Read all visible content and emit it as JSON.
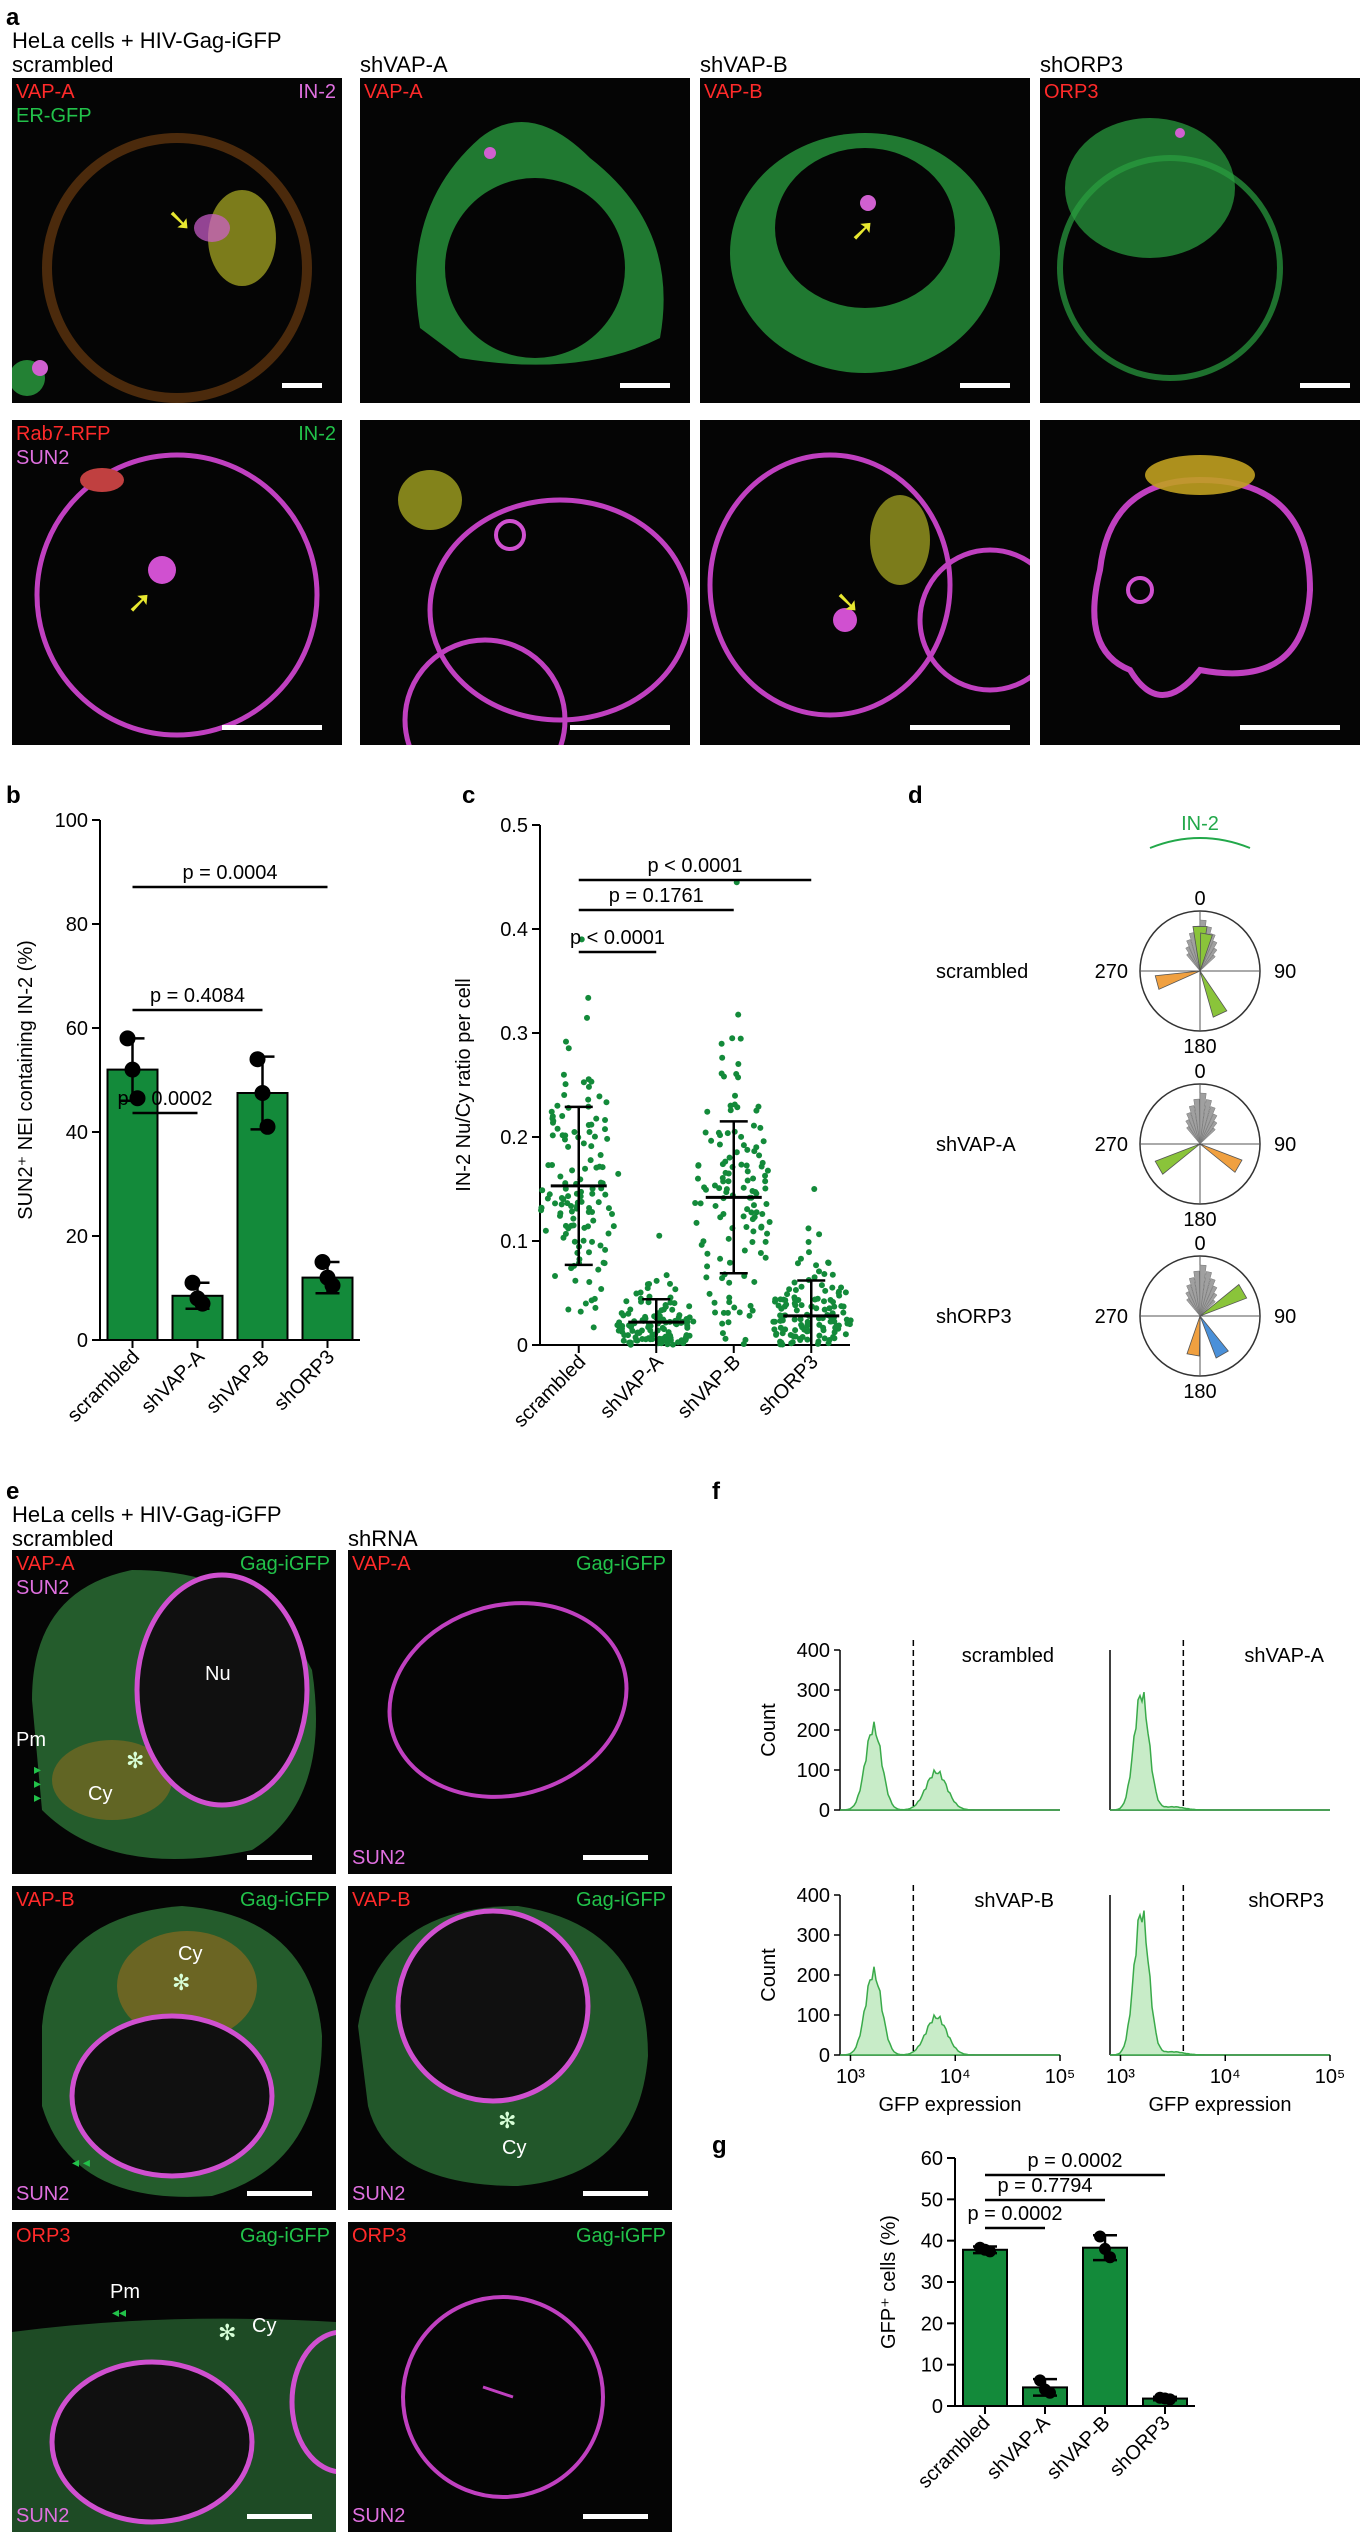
{
  "panel_labels": [
    "a",
    "b",
    "c",
    "d",
    "e",
    "f",
    "g"
  ],
  "panel_a": {
    "header_line1": "HeLa cells + HIV-Gag-iGFP",
    "columns": [
      "scrambled",
      "shVAP-A",
      "shVAP-B",
      "shORP3"
    ],
    "row1_labels": {
      "c1_red": "VAP-A",
      "c1_green": "ER-GFP",
      "c1_magenta": "IN-2",
      "c2_red": "VAP-A",
      "c3_red": "VAP-B",
      "c4_red": "ORP3"
    },
    "row2_labels": {
      "red": "Rab7-RFP",
      "green": "IN-2",
      "magenta": "SUN2"
    }
  },
  "panel_e": {
    "header_line1": "HeLa cells + HIV-Gag-iGFP",
    "col1": "scrambled",
    "col2": "shRNA",
    "rows": [
      {
        "red": "VAP-A",
        "green": "Gag-iGFP",
        "magenta": "SUN2"
      },
      {
        "red": "VAP-B",
        "green": "Gag-iGFP",
        "magenta": "SUN2"
      },
      {
        "red": "ORP3",
        "green": "Gag-iGFP",
        "magenta": "SUN2"
      }
    ],
    "annot": {
      "nu": "Nu",
      "pm": "Pm",
      "cy": "Cy"
    }
  },
  "panel_d": {
    "title": "IN-2",
    "conditions": [
      "scrambled",
      "shVAP-A",
      "shORP3"
    ],
    "angles": {
      "top": "0",
      "right": "90",
      "bottom": "180",
      "left": "270"
    }
  },
  "chart_data": [
    {
      "id": "b",
      "type": "bar",
      "categories": [
        "scrambled",
        "shVAP-A",
        "shVAP-B",
        "shORP3"
      ],
      "values": [
        52,
        8.5,
        47.5,
        12
      ],
      "errors": [
        6,
        2.5,
        7,
        3
      ],
      "points": [
        [
          58,
          52,
          46.5
        ],
        [
          11,
          8,
          7
        ],
        [
          54,
          47.5,
          41
        ],
        [
          15,
          12,
          10.5
        ]
      ],
      "ylabel": "SUN2⁺ NEI containing IN-2 (%)",
      "ylim": [
        0,
        100
      ],
      "yticks": [
        0,
        20,
        40,
        60,
        80,
        100
      ],
      "bar_color": "#138a3a",
      "comparisons": [
        {
          "from": 0,
          "to": 1,
          "label": "p = 0.0002"
        },
        {
          "from": 0,
          "to": 2,
          "label": "p = 0.4084"
        },
        {
          "from": 0,
          "to": 3,
          "label": "p = 0.0004"
        }
      ]
    },
    {
      "id": "c",
      "type": "scatter",
      "categories": [
        "scrambled",
        "shVAP-A",
        "shVAP-B",
        "shORP3"
      ],
      "means": [
        0.153,
        0.022,
        0.142,
        0.028
      ],
      "sd": [
        0.076,
        0.022,
        0.073,
        0.034
      ],
      "ymax_points": [
        0.39,
        0.105,
        0.445,
        0.15
      ],
      "ylabel": "IN-2 Nu/Cy ratio per cell",
      "ylim": [
        0,
        0.5
      ],
      "yticks": [
        0,
        0.1,
        0.2,
        0.3,
        0.4,
        0.5
      ],
      "point_color": "#138a3a",
      "comparisons": [
        {
          "from": 0,
          "to": 1,
          "label": "p < 0.0001"
        },
        {
          "from": 0,
          "to": 2,
          "label": "p = 0.1761"
        },
        {
          "from": 0,
          "to": 3,
          "label": "p < 0.0001"
        }
      ]
    },
    {
      "id": "f",
      "type": "area",
      "panels": [
        {
          "title": "scrambled",
          "bimodal": true
        },
        {
          "title": "shVAP-A",
          "bimodal": false
        },
        {
          "title": "shVAP-B",
          "bimodal": true
        },
        {
          "title": "shORP3",
          "bimodal": false
        }
      ],
      "ylabel": "Count",
      "xlabel": "GFP expression",
      "yticks": [
        0,
        100,
        200,
        300,
        400
      ],
      "ylim": [
        0,
        400
      ],
      "xticks": [
        "10³",
        "10⁴",
        "10⁵"
      ],
      "threshold_log10": 3.6
    },
    {
      "id": "g",
      "type": "bar",
      "categories": [
        "scrambled",
        "shVAP-A",
        "shVAP-B",
        "shORP3"
      ],
      "values": [
        37.8,
        4.5,
        38.3,
        1.8
      ],
      "errors": [
        0.8,
        2.0,
        3.0,
        0.4
      ],
      "points": [
        [
          38.3,
          37.8,
          37.4
        ],
        [
          6.2,
          4,
          3.2
        ],
        [
          41,
          38,
          36
        ],
        [
          2,
          1.8,
          1.6
        ]
      ],
      "ylabel": "GFP⁺ cells (%)",
      "ylim": [
        0,
        60
      ],
      "yticks": [
        0,
        10,
        20,
        30,
        40,
        50,
        60
      ],
      "bar_color": "#138a3a",
      "comparisons": [
        {
          "from": 0,
          "to": 1,
          "label": "p = 0.0002"
        },
        {
          "from": 0,
          "to": 2,
          "label": "p = 0.7794"
        },
        {
          "from": 0,
          "to": 3,
          "label": "p = 0.0002"
        }
      ]
    }
  ]
}
